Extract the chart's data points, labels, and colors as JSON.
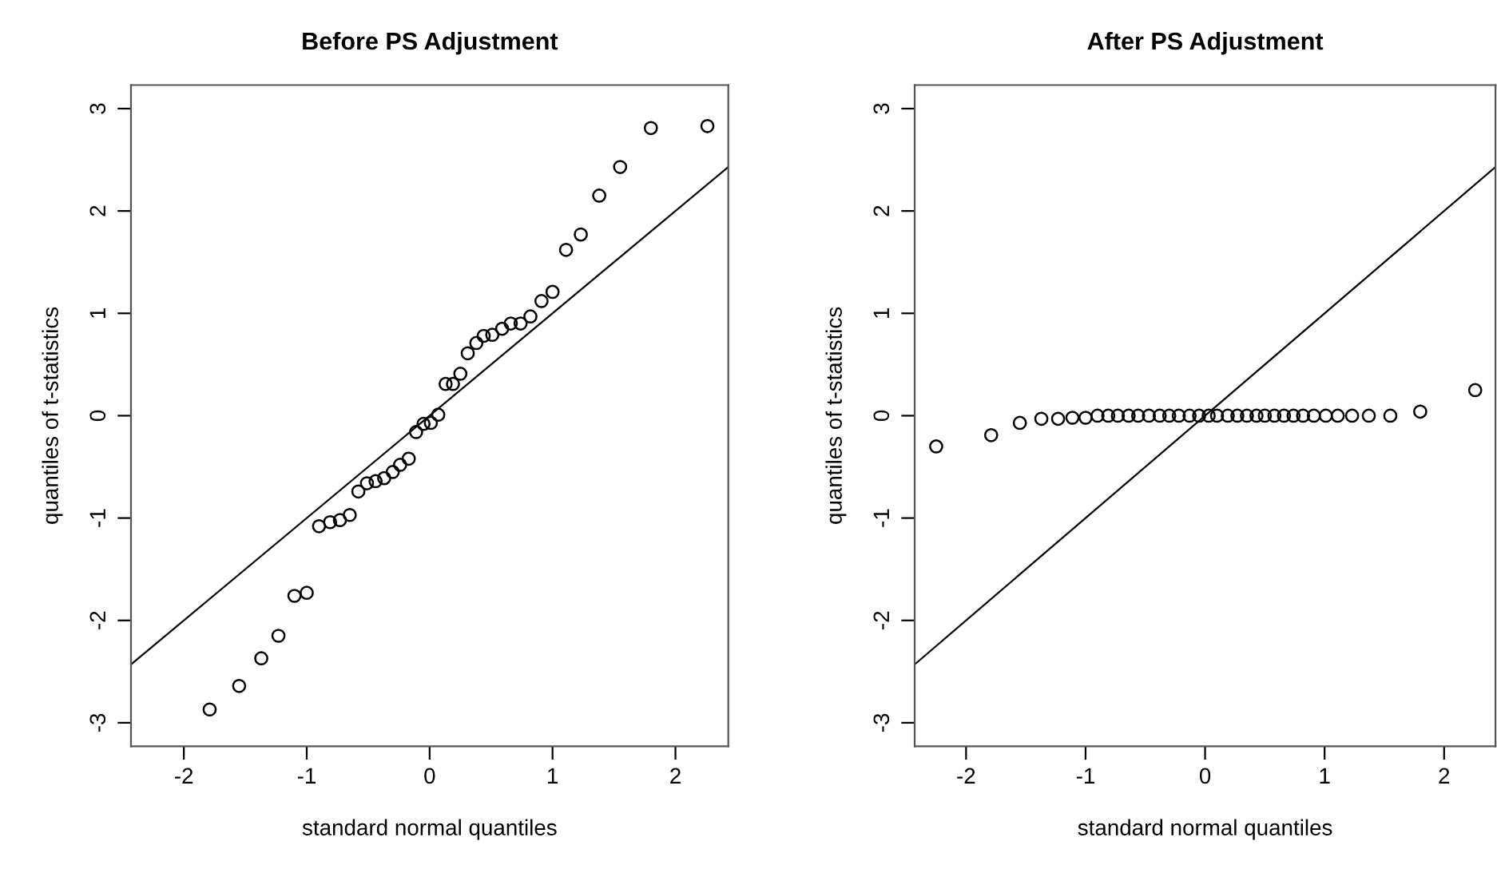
{
  "chart_data": [
    {
      "type": "scatter",
      "title": "Before PS Adjustment",
      "xlabel": "standard normal quantiles",
      "ylabel": "quantiles of t-statistics",
      "xlim": [
        -2.43,
        2.43
      ],
      "ylim": [
        -3.23,
        3.23
      ],
      "xticks": [
        -2,
        -1,
        0,
        1,
        2
      ],
      "yticks": [
        -3,
        -2,
        -1,
        0,
        1,
        2,
        3
      ],
      "grid": false,
      "legend": false,
      "series": [
        {
          "marker": "circle",
          "color": "#000000",
          "x": [
            -1.79,
            -1.55,
            -1.37,
            -1.23,
            -1.1,
            -1.0,
            -0.9,
            -0.81,
            -0.73,
            -0.65,
            -0.58,
            -0.51,
            -0.44,
            -0.37,
            -0.3,
            -0.24,
            -0.17,
            -0.11,
            -0.05,
            0.01,
            0.07,
            0.13,
            0.19,
            0.25,
            0.31,
            0.38,
            0.44,
            0.51,
            0.59,
            0.66,
            0.74,
            0.82,
            0.91,
            1.0,
            1.11,
            1.23,
            1.38,
            1.55,
            1.8,
            2.26
          ],
          "values": [
            -2.87,
            -2.64,
            -2.37,
            -2.15,
            -1.76,
            -1.73,
            -1.08,
            -1.04,
            -1.02,
            -0.97,
            -0.74,
            -0.66,
            -0.64,
            -0.61,
            -0.55,
            -0.48,
            -0.42,
            -0.16,
            -0.08,
            -0.07,
            0.01,
            0.31,
            0.31,
            0.41,
            0.61,
            0.71,
            0.78,
            0.79,
            0.85,
            0.9,
            0.9,
            0.97,
            1.12,
            1.21,
            1.62,
            1.77,
            2.15,
            2.43,
            2.81,
            2.83
          ]
        },
        {
          "type": "line",
          "color": "#000000",
          "x": [
            -2.43,
            2.43
          ],
          "values": [
            -2.43,
            2.43
          ]
        }
      ]
    },
    {
      "type": "scatter",
      "title": "After PS Adjustment",
      "xlabel": "standard normal quantiles",
      "ylabel": "quantiles of t-statistics",
      "xlim": [
        -2.43,
        2.43
      ],
      "ylim": [
        -3.23,
        3.23
      ],
      "xticks": [
        -2,
        -1,
        0,
        1,
        2
      ],
      "yticks": [
        -3,
        -2,
        -1,
        0,
        1,
        2,
        3
      ],
      "grid": false,
      "legend": false,
      "series": [
        {
          "marker": "circle",
          "color": "#000000",
          "x": [
            -2.25,
            -1.79,
            -1.55,
            -1.37,
            -1.23,
            -1.11,
            -1.0,
            -0.9,
            -0.81,
            -0.73,
            -0.64,
            -0.56,
            -0.47,
            -0.38,
            -0.3,
            -0.22,
            -0.13,
            -0.05,
            0.03,
            0.1,
            0.19,
            0.27,
            0.35,
            0.43,
            0.5,
            0.58,
            0.66,
            0.74,
            0.82,
            0.91,
            1.01,
            1.11,
            1.23,
            1.37,
            1.55,
            1.8,
            2.26
          ],
          "values": [
            -0.3,
            -0.19,
            -0.07,
            -0.03,
            -0.03,
            -0.02,
            -0.02,
            0,
            0,
            0,
            0,
            0,
            0,
            0,
            0,
            0,
            0,
            0,
            0,
            0,
            0,
            0,
            0,
            0,
            0,
            0,
            0,
            0,
            0,
            0,
            0,
            0,
            0,
            0,
            0,
            0.04,
            0.25
          ]
        },
        {
          "type": "line",
          "color": "#000000",
          "x": [
            -2.43,
            2.43
          ],
          "values": [
            -2.43,
            2.43
          ]
        }
      ]
    }
  ]
}
